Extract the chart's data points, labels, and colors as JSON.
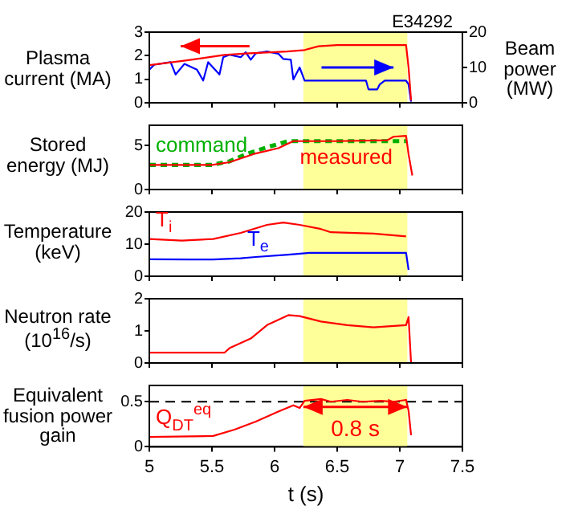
{
  "chart_data": [
    {
      "type": "line",
      "ylabel": "Plasma current (MA)",
      "y2label": "Beam power (MW)",
      "annotations": [
        "E34292"
      ],
      "xlim": [
        5,
        7.5
      ],
      "xticks": [
        5,
        5.5,
        6,
        6.5,
        7,
        7.5
      ],
      "ylim": [
        0,
        3
      ],
      "yticks": [
        0,
        1,
        2,
        3
      ],
      "y2lim": [
        0,
        20
      ],
      "y2ticks": [
        0,
        10,
        20
      ],
      "tick_labels": "y",
      "marker": "none",
      "bands": [
        {
          "axis": "x",
          "from": 6.23,
          "to": 7.06,
          "color": "#ffff99"
        }
      ],
      "series": [
        {
          "color": "#ff0000",
          "x": [
            5,
            5.3,
            5.6,
            5.8,
            6.1,
            6.24,
            6.35,
            6.5,
            7.05,
            7.07,
            7.09
          ],
          "values": [
            1.6,
            1.8,
            2.03,
            2.1,
            2.18,
            2.24,
            2.4,
            2.45,
            2.45,
            1.5,
            0.1
          ]
        },
        {
          "color": "#0000ff",
          "axis": "y2",
          "x": [
            5,
            5.04,
            5.17,
            5.21,
            5.28,
            5.38,
            5.43,
            5.47,
            5.56,
            5.59,
            5.64,
            5.73,
            5.77,
            5.81,
            5.85,
            5.94,
            6.03,
            6.07,
            6.13,
            6.15,
            6.2,
            6.24,
            6.73,
            6.75,
            6.82,
            6.84,
            6.88,
            7.05,
            7.07,
            7.09
          ],
          "values": [
            9.4,
            10.8,
            11.5,
            8,
            11,
            9.4,
            6.3,
            11.5,
            8,
            12.9,
            13.6,
            12.9,
            14.3,
            12.2,
            14,
            14.5,
            13.9,
            12.4,
            12.2,
            6.6,
            10,
            6.3,
            6.3,
            3.8,
            3.8,
            5.2,
            6.3,
            6.3,
            5.2,
            0.3
          ]
        }
      ]
    },
    {
      "type": "line",
      "ylabel": "Stored energy (MJ)",
      "xlim": [
        5,
        7.5
      ],
      "xticks": [
        5,
        5.5,
        6,
        6.5,
        7,
        7.5
      ],
      "ylim": [
        0,
        7.3
      ],
      "yticks": [
        0,
        5
      ],
      "tick_labels": "y",
      "marker": "none",
      "bands": [
        {
          "axis": "x",
          "from": 6.23,
          "to": 7.06,
          "color": "#ffff99"
        }
      ],
      "series": [
        {
          "name": "command",
          "color": "#00b000",
          "line_style": "dashed",
          "x": [
            5,
            5.5,
            5.64,
            5.77,
            5.94,
            6.11,
            6.24,
            7.05
          ],
          "values": [
            2.8,
            2.8,
            3.2,
            4.0,
            4.8,
            5.5,
            5.5,
            5.5
          ]
        },
        {
          "name": "measured",
          "color": "#ff0000",
          "x": [
            5,
            5.5,
            5.64,
            5.85,
            6.03,
            6.15,
            6.24,
            6.5,
            6.9,
            6.95,
            7.05,
            7.07,
            7.1
          ],
          "values": [
            2.8,
            2.8,
            3.1,
            4.1,
            4.7,
            5.5,
            5.5,
            5.5,
            5.6,
            6.0,
            6.1,
            4,
            1.6
          ]
        }
      ]
    },
    {
      "type": "line",
      "ylabel": "Temperature (keV)",
      "xlim": [
        5,
        7.5
      ],
      "xticks": [
        5,
        5.5,
        6,
        6.5,
        7,
        7.5
      ],
      "ylim": [
        0,
        20
      ],
      "yticks": [
        0,
        10,
        20
      ],
      "tick_labels": "y",
      "marker": "none",
      "bands": [
        {
          "axis": "x",
          "from": 6.23,
          "to": 7.06,
          "color": "#ffff99"
        }
      ],
      "series": [
        {
          "name": "T$_{i}$",
          "color": "#ff0000",
          "x": [
            5,
            5.26,
            5.51,
            5.73,
            5.94,
            6.07,
            6.2,
            6.37,
            6.45,
            6.79,
            7.05
          ],
          "values": [
            11.6,
            11.1,
            11.6,
            13.5,
            16,
            16.7,
            16,
            14.7,
            13.7,
            13.3,
            12.4
          ]
        },
        {
          "name": "T$_{e}$",
          "color": "#0000ff",
          "x": [
            5,
            5.34,
            5.51,
            5.73,
            5.85,
            6.11,
            6.28,
            7.05,
            7.07
          ],
          "values": [
            5.3,
            5.2,
            5.2,
            5.6,
            6,
            6.7,
            7.3,
            7.3,
            2
          ]
        }
      ]
    },
    {
      "type": "line",
      "ylabel": "Neutron rate (10$^{16}$/s)",
      "xlim": [
        5,
        7.5
      ],
      "xticks": [
        5,
        5.5,
        6,
        6.5,
        7,
        7.5
      ],
      "ylim": [
        0,
        2
      ],
      "yticks": [
        0,
        1,
        2
      ],
      "tick_labels": "y",
      "marker": "none",
      "bands": [
        {
          "axis": "x",
          "from": 6.23,
          "to": 7.06,
          "color": "#ffff99"
        }
      ],
      "series": [
        {
          "color": "#ff0000",
          "x": [
            5,
            5.6,
            5.64,
            5.81,
            5.94,
            6.11,
            6.2,
            6.37,
            6.58,
            6.79,
            7.05,
            7.07,
            7.09
          ],
          "values": [
            0.32,
            0.32,
            0.46,
            0.76,
            1.18,
            1.49,
            1.46,
            1.29,
            1.18,
            1.11,
            1.18,
            1.43,
            0
          ]
        }
      ]
    },
    {
      "type": "line",
      "ylabel": "Equivalent fusion power gain",
      "xlabel": "t (s)",
      "annotations": [
        "0.8 s"
      ],
      "xlim": [
        5,
        7.5
      ],
      "xticks": [
        5,
        5.5,
        6,
        6.5,
        7,
        7.5
      ],
      "ylim": [
        0,
        0.68
      ],
      "yticks": [
        0,
        0.5
      ],
      "marker": "none",
      "bands": [
        {
          "axis": "x",
          "from": 6.23,
          "to": 7.06,
          "color": "#ffff99"
        }
      ],
      "ref_lines": [
        {
          "axis": "y",
          "value": 0.5,
          "color": "#000000",
          "line_style": "dashed"
        }
      ],
      "series": [
        {
          "name": "Q$_{DT}$$^{eq}$",
          "color": "#ff0000",
          "x": [
            5,
            5.51,
            5.68,
            5.85,
            6.03,
            6.15,
            6.2,
            6.24,
            6.37,
            6.45,
            6.58,
            6.7,
            6.85,
            6.95,
            7.05,
            7.07,
            7.09
          ],
          "values": [
            0.11,
            0.12,
            0.19,
            0.28,
            0.39,
            0.46,
            0.43,
            0.51,
            0.53,
            0.5,
            0.52,
            0.5,
            0.51,
            0.5,
            0.52,
            0.4,
            0.13
          ]
        }
      ]
    }
  ]
}
